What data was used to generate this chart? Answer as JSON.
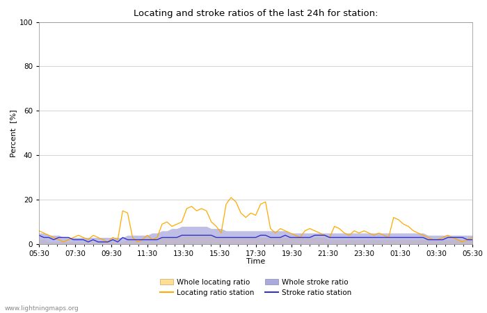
{
  "title": "Locating and stroke ratios of the last 24h for station:",
  "xlabel": "Time",
  "ylabel": "Percent  [%]",
  "ylim": [
    0,
    100
  ],
  "yticks": [
    0,
    20,
    40,
    60,
    80,
    100
  ],
  "watermark": "www.lightningmaps.org",
  "x_labels": [
    "05:30",
    "07:30",
    "09:30",
    "11:30",
    "13:30",
    "15:30",
    "17:30",
    "19:30",
    "21:30",
    "23:30",
    "01:30",
    "03:30",
    "05:30"
  ],
  "locating_station": [
    6,
    5,
    4,
    3,
    2,
    1,
    2,
    3,
    4,
    3,
    2,
    4,
    3,
    2,
    1,
    3,
    2,
    15,
    14,
    3,
    1,
    2,
    4,
    2,
    3,
    9,
    10,
    8,
    9,
    10,
    16,
    17,
    15,
    16,
    15,
    10,
    8,
    5,
    18,
    21,
    19,
    14,
    12,
    14,
    13,
    18,
    19,
    7,
    5,
    7,
    6,
    5,
    4,
    3,
    6,
    7,
    6,
    5,
    4,
    3,
    8,
    7,
    5,
    4,
    6,
    5,
    6,
    5,
    4,
    5,
    4,
    3,
    12,
    11,
    9,
    8,
    6,
    5,
    4,
    3,
    2,
    2,
    3,
    4,
    3,
    2,
    1,
    2,
    3
  ],
  "whole_locating": [
    2,
    2,
    1,
    1,
    1,
    1,
    1,
    1,
    1,
    1,
    1,
    1,
    1,
    1,
    1,
    1,
    1,
    1,
    2,
    2,
    2,
    2,
    2,
    2,
    2,
    3,
    3,
    3,
    3,
    4,
    4,
    4,
    4,
    4,
    4,
    4,
    3,
    3,
    3,
    3,
    3,
    3,
    3,
    3,
    3,
    3,
    3,
    3,
    3,
    3,
    3,
    3,
    3,
    3,
    3,
    3,
    3,
    3,
    3,
    2,
    2,
    2,
    2,
    2,
    2,
    2,
    2,
    2,
    2,
    2,
    2,
    2,
    2,
    2,
    2,
    2,
    2,
    2,
    2,
    2,
    2,
    2,
    2,
    2,
    2,
    2,
    2,
    2,
    2
  ],
  "stroke_station": [
    4,
    3,
    3,
    2,
    3,
    3,
    3,
    2,
    2,
    2,
    1,
    2,
    1,
    1,
    1,
    2,
    1,
    3,
    2,
    2,
    2,
    2,
    2,
    2,
    2,
    3,
    3,
    3,
    3,
    4,
    4,
    4,
    4,
    4,
    4,
    4,
    3,
    3,
    3,
    3,
    3,
    3,
    3,
    3,
    3,
    4,
    4,
    3,
    3,
    3,
    4,
    3,
    3,
    3,
    3,
    3,
    4,
    4,
    4,
    3,
    3,
    3,
    3,
    3,
    3,
    3,
    3,
    3,
    3,
    3,
    3,
    3,
    3,
    3,
    3,
    3,
    3,
    3,
    3,
    2,
    2,
    2,
    2,
    3,
    3,
    3,
    3,
    2,
    2
  ],
  "whole_stroke": [
    5,
    5,
    4,
    4,
    4,
    3,
    3,
    3,
    3,
    3,
    3,
    3,
    3,
    3,
    3,
    3,
    3,
    3,
    4,
    4,
    4,
    4,
    4,
    5,
    5,
    6,
    6,
    7,
    7,
    8,
    8,
    8,
    8,
    8,
    8,
    7,
    7,
    7,
    6,
    6,
    6,
    6,
    6,
    6,
    6,
    6,
    6,
    6,
    6,
    6,
    6,
    5,
    5,
    5,
    5,
    5,
    5,
    5,
    5,
    5,
    5,
    5,
    5,
    5,
    5,
    5,
    5,
    5,
    5,
    5,
    5,
    5,
    5,
    5,
    5,
    5,
    5,
    5,
    5,
    4,
    4,
    4,
    4,
    4,
    4,
    4,
    4,
    4,
    4
  ],
  "color_locating_station": "#ffaa00",
  "color_whole_locating": "#ffdd99",
  "color_stroke_station": "#3333cc",
  "color_whole_stroke": "#aaaadd",
  "background_color": "#ffffff",
  "plot_bg_color": "#ffffff",
  "grid_color": "#cccccc",
  "title_fontsize": 9.5,
  "axis_fontsize": 8,
  "tick_fontsize": 7.5
}
